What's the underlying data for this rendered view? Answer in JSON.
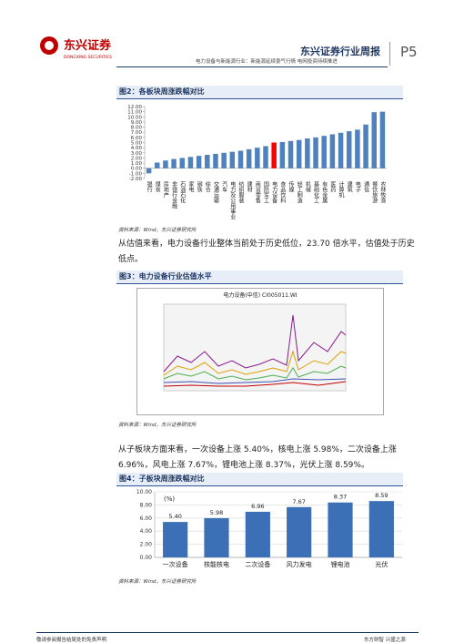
{
  "header": {
    "logo": "东兴证券",
    "logo_en": "DONGXING SECURITIES",
    "title": "东兴证券行业周报",
    "page": "P5",
    "subtitle": "电力设备与新能源行业：新能源延续景气行情 电网投资持续推进"
  },
  "figure2": {
    "caption": "图2：各板块周涨跌幅对比",
    "source": "资料来源：Wind，东兴证券研究所"
  },
  "paragraph1": "从估值来看，电力设备行业整体当前处于历史低位，23.70 倍水平，估值处于历史低点。",
  "figure3": {
    "caption": "图3：电力设备行业估值水平",
    "chart_title": "电力设备(中信) CI005011.WI",
    "source": "资料来源：Wind，东兴证券研究所"
  },
  "paragraph2": "从子板块方面来看，一次设备上涨 5.40%，核电上涨 5.98%，二次设备上涨 6.96%，风电上涨 7.67%，锂电池上涨 8.37%，光伏上涨 8.59%。",
  "figure4": {
    "caption": "图4：子板块周涨跌幅对比",
    "source": "资料来源：Wind，东兴证券研究所"
  },
  "footer": {
    "left": "敬请参阅报告结尾处的免责声明",
    "right": "东方财智 兴盛之源"
  },
  "chart_data": [
    {
      "type": "bar",
      "categories": [
        "银行",
        "煤炭",
        "房地产",
        "非银行金融",
        "石油石化",
        "家电",
        "钢铁",
        "综合",
        "交通运输",
        "汽车",
        "电力及公用事业",
        "纺织服装",
        "建材",
        "商贸零售",
        "国防军工",
        "电力设备",
        "食品饮料",
        "传媒",
        "轻工制造",
        "机械",
        "基础化工",
        "有色金属",
        "医药",
        "计算机",
        "建筑",
        "电子",
        "通信",
        "餐饮旅游",
        "农林牧渔"
      ],
      "values": [
        -1.0,
        1.1,
        1.5,
        1.8,
        2.0,
        2.2,
        2.4,
        2.6,
        2.8,
        3.0,
        3.2,
        3.4,
        3.7,
        4.0,
        4.3,
        5.0,
        5.1,
        5.3,
        5.5,
        5.8,
        6.0,
        6.3,
        6.6,
        6.9,
        7.2,
        7.5,
        8.5,
        10.9,
        11.0
      ],
      "color": "#4f81bd",
      "highlight": {
        "index": 15,
        "color": "#ff0000"
      },
      "ylim": [
        -2,
        12
      ],
      "yticks": [
        {
          "value": -2,
          "label": "-2.00"
        },
        {
          "value": -1,
          "label": "-1.00"
        },
        {
          "value": 0,
          "label": "0.00"
        },
        {
          "value": 1,
          "label": "1.00"
        },
        {
          "value": 2,
          "label": "2.00"
        },
        {
          "value": 3,
          "label": "3.00"
        },
        {
          "value": 4,
          "label": "4.00"
        },
        {
          "value": 5,
          "label": "5.00"
        },
        {
          "value": 6,
          "label": "6.00"
        },
        {
          "value": 7,
          "label": "7.00"
        },
        {
          "value": 8,
          "label": "8.00"
        },
        {
          "value": 9,
          "label": "9.00"
        },
        {
          "value": 10,
          "label": "10.00"
        },
        {
          "value": 11,
          "label": "11.00"
        },
        {
          "value": 12,
          "label": "12.00"
        }
      ],
      "grid": false
    },
    {
      "type": "bar",
      "y_label": "(%)",
      "categories": [
        "一次设备",
        "核能核电",
        "二次设备",
        "风力发电",
        "锂电池",
        "光伏"
      ],
      "values": [
        5.4,
        5.98,
        6.96,
        7.67,
        8.37,
        8.59
      ],
      "value_labels": [
        "5.40",
        "5.98",
        "6.96",
        "7.67",
        "8.37",
        "8.59"
      ],
      "color": "#3b6fb6",
      "ylim": [
        0,
        10
      ],
      "yticks": [
        {
          "value": 0,
          "label": "0.00"
        },
        {
          "value": 2,
          "label": "2.00"
        },
        {
          "value": 4,
          "label": "4.00"
        },
        {
          "value": 6,
          "label": "6.00"
        },
        {
          "value": 8,
          "label": "8.00"
        },
        {
          "value": 10,
          "label": "10.00"
        }
      ],
      "grid": true
    }
  ]
}
